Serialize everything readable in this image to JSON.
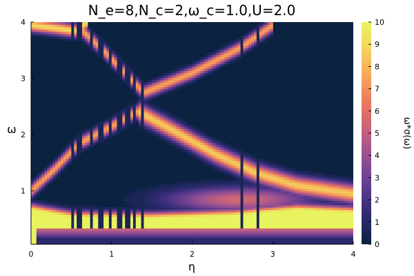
{
  "chart_data": {
    "type": "heatmap",
    "title": "N_e=8,N_c=2,ω_c=1.0,U=2.0",
    "xlabel": "η",
    "ylabel": "ω",
    "colorbar_label": "ω*σ(ω)",
    "xlim": [
      0,
      4
    ],
    "ylim": [
      0.05,
      4
    ],
    "clim": [
      0,
      10
    ],
    "x_ticks": [
      "0",
      "1",
      "2",
      "3",
      "4"
    ],
    "y_ticks": [
      "1",
      "2",
      "3",
      "4"
    ],
    "colorbar_ticks": [
      "0",
      "1",
      "2",
      "3",
      "4",
      "5",
      "6",
      "7",
      "8",
      "9",
      "10"
    ],
    "colormap": [
      "#0b2240",
      "#2b2a6e",
      "#5b3a8e",
      "#8f4d96",
      "#c1607f",
      "#e8755e",
      "#f6a35a",
      "#f3d35d",
      "#e8f45f"
    ],
    "grid": false,
    "features": {
      "bands": [
        {
          "name": "upper-left branch",
          "points": [
            [
              0.6,
              3.9
            ],
            [
              0.9,
              3.5
            ],
            [
              1.3,
              2.9
            ],
            [
              1.4,
              2.75
            ],
            [
              2.0,
              3.1
            ],
            [
              2.6,
              3.55
            ],
            [
              3.0,
              3.95
            ]
          ],
          "value": 7.5
        },
        {
          "name": "lower-left branch",
          "points": [
            [
              0.0,
              1.0
            ],
            [
              0.3,
              1.4
            ],
            [
              0.6,
              1.85
            ],
            [
              1.0,
              2.15
            ],
            [
              1.3,
              2.4
            ],
            [
              1.4,
              2.45
            ]
          ],
          "value": 7.5
        },
        {
          "name": "right descending branch",
          "points": [
            [
              1.35,
              2.4
            ],
            [
              1.8,
              2.05
            ],
            [
              2.3,
              1.65
            ],
            [
              2.8,
              1.32
            ],
            [
              3.3,
              1.1
            ],
            [
              4.0,
              0.95
            ]
          ],
          "value": 8.5
        },
        {
          "name": "top-left band",
          "points": [
            [
              0.0,
              3.95
            ],
            [
              0.3,
              3.9
            ],
            [
              0.55,
              3.85
            ],
            [
              0.7,
              4.0
            ]
          ],
          "value": 9.0
        },
        {
          "name": "bright low region",
          "value": 10,
          "description_points": [
            [
              0.0,
              0.65
            ],
            [
              0.5,
              0.52
            ],
            [
              1.5,
              0.5
            ],
            [
              2.5,
              0.55
            ],
            [
              3.3,
              0.65
            ],
            [
              4.0,
              0.6
            ]
          ]
        }
      ],
      "dark_vertical_lines_eta": [
        0.52,
        0.6,
        0.75,
        0.86,
        0.98,
        1.1,
        1.2,
        1.28,
        1.38,
        2.62,
        2.82
      ]
    }
  }
}
